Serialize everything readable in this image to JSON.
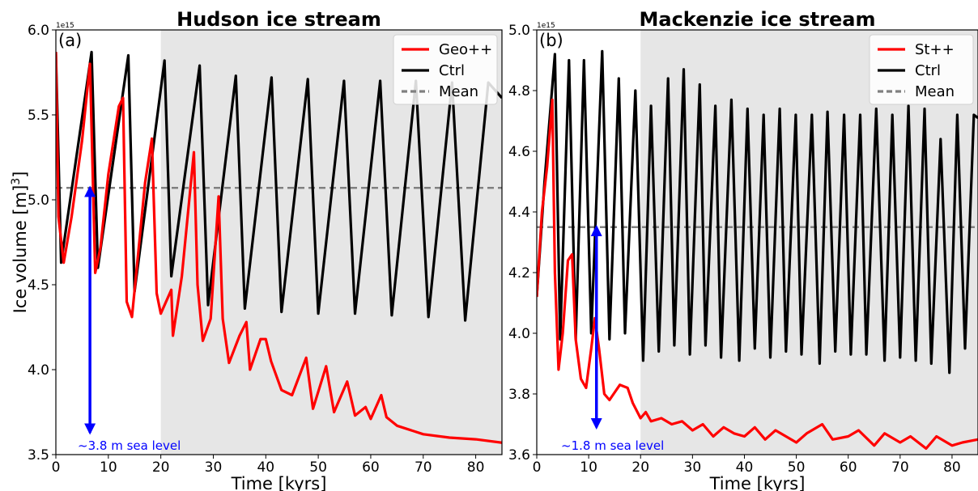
{
  "chart_data": [
    {
      "type": "line",
      "title": "Hudson ice stream",
      "panel_label": "(a)",
      "xlabel": "Time [kyrs]",
      "ylabel": "Ice volume [m³]",
      "y_exponent_label": "1e15",
      "xlim": [
        0,
        85
      ],
      "ylim": [
        3.5,
        6.0
      ],
      "x_ticks": [
        0,
        10,
        20,
        30,
        40,
        50,
        60,
        70,
        80
      ],
      "y_ticks": [
        3.5,
        4.0,
        4.5,
        5.0,
        5.5,
        6.0
      ],
      "y_tick_labels": [
        "3.5",
        "4.0",
        "4.5",
        "5.0",
        "5.5",
        "6.0"
      ],
      "shaded_region": [
        20,
        85
      ],
      "shade_color": "#e6e6e6",
      "mean_value": 5.07,
      "legend_position": "top-right",
      "series": [
        {
          "name": "Geo++",
          "color": "#ff0000",
          "x": [
            0,
            0.5,
            1.5,
            3,
            5,
            6.5,
            7.5,
            8.5,
            10,
            12,
            12.8,
            13.5,
            14.5,
            17,
            18.3,
            19.2,
            20,
            22,
            22.3,
            24,
            26.3,
            27,
            28,
            29.5,
            31,
            31.8,
            33,
            35,
            36.3,
            37,
            39,
            40,
            41,
            43,
            45,
            47.7,
            49,
            51.5,
            53,
            55.5,
            57,
            59,
            60,
            62,
            63,
            65,
            70,
            75,
            80,
            85
          ],
          "y": [
            5.87,
            4.9,
            4.63,
            4.9,
            5.35,
            5.8,
            4.57,
            4.72,
            5.15,
            5.55,
            5.6,
            4.4,
            4.31,
            5.1,
            5.36,
            4.45,
            4.33,
            4.47,
            4.2,
            4.55,
            5.28,
            4.5,
            4.17,
            4.3,
            5.02,
            4.3,
            4.04,
            4.2,
            4.28,
            4.0,
            4.18,
            4.18,
            4.05,
            3.88,
            3.85,
            4.07,
            3.77,
            4.02,
            3.75,
            3.93,
            3.73,
            3.78,
            3.71,
            3.85,
            3.72,
            3.67,
            3.62,
            3.6,
            3.59,
            3.57
          ]
        },
        {
          "name": "Ctrl",
          "color": "#000000",
          "x": [
            0,
            1,
            6.8,
            8,
            13.8,
            15,
            20.7,
            22,
            27.4,
            29,
            34.3,
            36,
            41.1,
            43,
            48,
            50,
            54.9,
            57,
            61.8,
            64,
            68.6,
            71,
            75.5,
            78,
            82.4,
            85
          ],
          "y": [
            5.87,
            4.63,
            5.87,
            4.6,
            5.85,
            4.46,
            5.82,
            4.55,
            5.79,
            4.38,
            5.73,
            4.36,
            5.72,
            4.34,
            5.71,
            4.33,
            5.7,
            4.33,
            5.7,
            4.32,
            5.7,
            4.31,
            5.69,
            4.29,
            5.69,
            5.6
          ]
        },
        {
          "name": "Mean",
          "color": "#808080",
          "dashed": true
        }
      ],
      "annotation": {
        "text": "~3.8 m sea level",
        "arrow_x": 6.5,
        "arrow_y_from": 3.63,
        "arrow_y_to": 5.07,
        "color": "#0000ff"
      }
    },
    {
      "type": "line",
      "title": "Mackenzie ice stream",
      "panel_label": "(b)",
      "xlabel": "Time [kyrs]",
      "ylabel": "",
      "y_exponent_label": "1e15",
      "xlim": [
        0,
        85
      ],
      "ylim": [
        3.6,
        5.0
      ],
      "x_ticks": [
        0,
        10,
        20,
        30,
        40,
        50,
        60,
        70,
        80
      ],
      "y_ticks": [
        3.6,
        3.8,
        4.0,
        4.2,
        4.4,
        4.6,
        4.8,
        5.0
      ],
      "y_tick_labels": [
        "3.6",
        "3.8",
        "4.0",
        "4.2",
        "4.4",
        "4.6",
        "4.8",
        "5.0"
      ],
      "shaded_region": [
        20,
        85
      ],
      "shade_color": "#e6e6e6",
      "mean_value": 4.35,
      "legend_position": "top-right",
      "series": [
        {
          "name": "St++",
          "color": "#ff0000",
          "x": [
            0,
            1,
            2,
            3,
            3.5,
            4.2,
            5,
            6,
            6.8,
            7.5,
            8.5,
            9.5,
            10.5,
            11.2,
            12,
            13,
            14,
            16,
            17.5,
            18.5,
            20,
            21,
            22,
            24,
            26,
            28,
            30,
            32,
            34,
            36,
            38,
            40,
            42,
            44,
            46,
            48,
            50,
            52,
            55,
            57,
            60,
            62,
            65,
            67,
            70,
            72,
            75,
            77,
            80,
            82,
            85
          ],
          "y": [
            4.12,
            4.4,
            4.55,
            4.77,
            4.2,
            3.88,
            4.0,
            4.24,
            4.26,
            3.98,
            3.85,
            3.82,
            3.95,
            4.05,
            3.95,
            3.8,
            3.78,
            3.83,
            3.82,
            3.77,
            3.72,
            3.74,
            3.71,
            3.72,
            3.7,
            3.71,
            3.68,
            3.7,
            3.66,
            3.69,
            3.67,
            3.66,
            3.69,
            3.65,
            3.68,
            3.66,
            3.64,
            3.67,
            3.7,
            3.65,
            3.66,
            3.68,
            3.63,
            3.67,
            3.64,
            3.66,
            3.62,
            3.66,
            3.63,
            3.64,
            3.65
          ]
        },
        {
          "name": "Ctrl",
          "color": "#000000",
          "x": [
            0,
            1.5,
            3.5,
            4.5,
            6.2,
            7.5,
            9.1,
            10.5,
            12.6,
            14,
            15.8,
            17,
            19,
            20.5,
            22,
            23.5,
            25.3,
            26.5,
            28.3,
            29.5,
            31.4,
            32.5,
            34.4,
            35.5,
            37.5,
            39,
            40.6,
            42,
            43.7,
            45,
            46.8,
            48,
            49.9,
            51,
            53,
            54.5,
            56,
            57.5,
            59.2,
            60.5,
            62.3,
            63.5,
            65.4,
            67,
            68.5,
            70,
            71.6,
            73,
            74.7,
            76,
            77.8,
            79.5,
            81,
            82.5,
            84.2,
            85
          ],
          "y": [
            4.12,
            4.5,
            4.92,
            3.98,
            4.9,
            3.98,
            4.9,
            4.0,
            4.93,
            3.98,
            4.84,
            4.0,
            4.8,
            3.91,
            4.75,
            3.94,
            4.84,
            3.96,
            4.87,
            3.93,
            4.82,
            3.96,
            4.75,
            3.92,
            4.77,
            3.91,
            4.74,
            3.95,
            4.72,
            3.92,
            4.74,
            3.94,
            4.72,
            3.93,
            4.72,
            3.9,
            4.73,
            3.94,
            4.72,
            3.93,
            4.72,
            3.93,
            4.74,
            3.91,
            4.72,
            3.92,
            4.75,
            3.91,
            4.74,
            3.9,
            4.64,
            3.87,
            4.72,
            3.95,
            4.72,
            4.71
          ]
        },
        {
          "name": "Mean",
          "color": "#808080",
          "dashed": true
        }
      ],
      "annotation": {
        "text": "~1.8 m sea level",
        "arrow_x": 11.5,
        "arrow_y_from": 3.69,
        "arrow_y_to": 4.35,
        "color": "#0000ff"
      }
    }
  ]
}
